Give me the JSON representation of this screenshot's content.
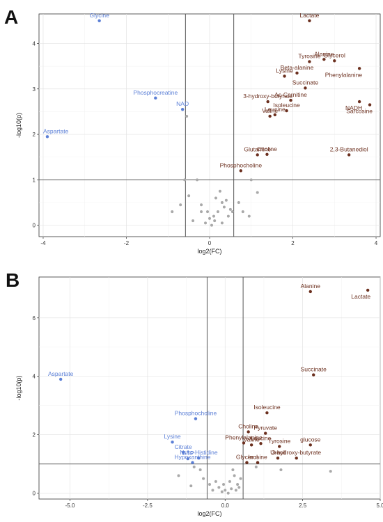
{
  "colors": {
    "up": "#6b2f1e",
    "down": "#5b7fd6",
    "ns": "#a9a9a9",
    "threshold": "#555555"
  },
  "chart_data": [
    {
      "type": "scatter",
      "panel": "A",
      "xlabel": "log2(FC)",
      "ylabel": "-log10(p)",
      "xlim": [
        -4.1,
        4.1
      ],
      "ylim": [
        -0.25,
        4.65
      ],
      "xticks": [
        -4,
        -2,
        0,
        2,
        4
      ],
      "yticks": [
        0,
        1,
        2,
        3,
        4
      ],
      "thresholds": {
        "x": [
          -0.58,
          0.58
        ],
        "y": 1.0
      },
      "grid": true,
      "points": [
        {
          "label": "Lactate",
          "x": 2.4,
          "y": 4.5,
          "g": "up"
        },
        {
          "label": "Alanine",
          "x": 2.75,
          "y": 3.65,
          "g": "up"
        },
        {
          "label": "Tyrosine",
          "x": 2.4,
          "y": 3.6,
          "g": "up"
        },
        {
          "label": "Glycerol",
          "x": 3.0,
          "y": 3.62,
          "g": "up"
        },
        {
          "label": "Phenylalanine",
          "x": 3.6,
          "y": 3.45,
          "g": "up"
        },
        {
          "label": "Beta-alanine",
          "x": 2.1,
          "y": 3.35,
          "g": "up"
        },
        {
          "label": "Lysine",
          "x": 1.8,
          "y": 3.28,
          "g": "up"
        },
        {
          "label": "Succinate",
          "x": 2.3,
          "y": 3.02,
          "g": "up"
        },
        {
          "label": "3-hydroxy-butyrate",
          "x": 1.4,
          "y": 2.72,
          "g": "up"
        },
        {
          "label": "Ac-Carnitine",
          "x": 1.95,
          "y": 2.75,
          "g": "up"
        },
        {
          "label": "NADH",
          "x": 3.6,
          "y": 2.72,
          "g": "up"
        },
        {
          "label": "Valine",
          "x": 1.45,
          "y": 2.4,
          "g": "up"
        },
        {
          "label": "Isoleucine",
          "x": 1.85,
          "y": 2.52,
          "g": "up"
        },
        {
          "label": "Sarcosine",
          "x": 3.85,
          "y": 2.65,
          "g": "up"
        },
        {
          "label": "Leucine",
          "x": 1.57,
          "y": 2.43,
          "g": "up"
        },
        {
          "label": "2,3-Butanediol",
          "x": 3.35,
          "y": 1.55,
          "g": "up"
        },
        {
          "label": "Glutamine",
          "x": 1.15,
          "y": 1.55,
          "g": "up"
        },
        {
          "label": "Choline",
          "x": 1.38,
          "y": 1.56,
          "g": "up"
        },
        {
          "label": "Phosphocholine",
          "x": 0.75,
          "y": 1.2,
          "g": "up"
        },
        {
          "label": "Glycine",
          "x": -2.65,
          "y": 4.5,
          "g": "down"
        },
        {
          "label": "Phosphocreatine",
          "x": -1.3,
          "y": 2.8,
          "g": "down"
        },
        {
          "label": "NAD",
          "x": -0.65,
          "y": 2.55,
          "g": "down"
        },
        {
          "label": "Aspartate",
          "x": -3.9,
          "y": 1.95,
          "g": "down"
        }
      ],
      "ns_points": [
        [
          -0.55,
          2.4
        ],
        [
          -0.6,
          1.0
        ],
        [
          -0.3,
          1.0
        ],
        [
          -0.2,
          0.3
        ],
        [
          0.0,
          0.15
        ],
        [
          0.1,
          0.2
        ],
        [
          0.2,
          0.3
        ],
        [
          0.25,
          0.75
        ],
        [
          0.3,
          0.5
        ],
        [
          0.35,
          0.4
        ],
        [
          0.4,
          0.55
        ],
        [
          0.5,
          0.35
        ],
        [
          0.55,
          0.3
        ],
        [
          0.45,
          0.2
        ],
        [
          -0.1,
          0.05
        ],
        [
          0.05,
          0.0
        ],
        [
          0.15,
          0.6
        ],
        [
          0.3,
          0.05
        ],
        [
          -0.4,
          0.1
        ],
        [
          -0.5,
          0.65
        ],
        [
          -0.7,
          0.45
        ],
        [
          -0.9,
          0.3
        ],
        [
          -0.2,
          0.45
        ],
        [
          0.7,
          0.5
        ],
        [
          0.8,
          0.3
        ],
        [
          1.0,
          1.0
        ],
        [
          1.15,
          0.72
        ],
        [
          0.95,
          0.2
        ],
        [
          -0.05,
          0.3
        ],
        [
          0.12,
          0.1
        ]
      ]
    },
    {
      "type": "scatter",
      "panel": "B",
      "xlabel": "log2(FC)",
      "ylabel": "-log10(p)",
      "xlim": [
        -6.0,
        5.0
      ],
      "ylim": [
        -0.2,
        7.4
      ],
      "xticks": [
        -5.0,
        -2.5,
        0.0,
        2.5,
        5.0
      ],
      "yticks": [
        0,
        2,
        4,
        6
      ],
      "thresholds": {
        "x": [
          -0.58,
          0.58
        ],
        "y": 1.0
      },
      "grid": true,
      "points": [
        {
          "label": "Alanine",
          "x": 2.75,
          "y": 6.9,
          "g": "up"
        },
        {
          "label": "Lactate",
          "x": 4.6,
          "y": 6.95,
          "g": "up"
        },
        {
          "label": "Succinate",
          "x": 2.85,
          "y": 4.05,
          "g": "up"
        },
        {
          "label": "Isoleucine",
          "x": 1.35,
          "y": 2.75,
          "g": "up"
        },
        {
          "label": "Choline",
          "x": 0.75,
          "y": 2.1,
          "g": "up"
        },
        {
          "label": "Pyruvate",
          "x": 1.3,
          "y": 2.05,
          "g": "up"
        },
        {
          "label": "Phenylalanine",
          "x": 0.6,
          "y": 1.72,
          "g": "up"
        },
        {
          "label": "Leucine",
          "x": 1.15,
          "y": 1.7,
          "g": "up"
        },
        {
          "label": "glucose",
          "x": 2.75,
          "y": 1.65,
          "g": "up"
        },
        {
          "label": "Valine",
          "x": 0.85,
          "y": 1.65,
          "g": "up"
        },
        {
          "label": "Tyrosine",
          "x": 1.75,
          "y": 1.6,
          "g": "up"
        },
        {
          "label": "Uracil",
          "x": 1.7,
          "y": 1.2,
          "g": "up"
        },
        {
          "label": "3-hydroxy-butyrate",
          "x": 2.3,
          "y": 1.2,
          "g": "up"
        },
        {
          "label": "Glycerol",
          "x": 0.7,
          "y": 1.05,
          "g": "up"
        },
        {
          "label": "Inosine",
          "x": 1.05,
          "y": 1.05,
          "g": "up"
        },
        {
          "label": "Aspartate",
          "x": -5.3,
          "y": 3.9,
          "g": "down"
        },
        {
          "label": "Phosphocholine",
          "x": -0.95,
          "y": 2.55,
          "g": "down"
        },
        {
          "label": "Lysine",
          "x": -1.7,
          "y": 1.75,
          "g": "down"
        },
        {
          "label": "Citrate",
          "x": -1.35,
          "y": 1.4,
          "g": "down"
        },
        {
          "label": "N-Ac-Histidine",
          "x": -0.85,
          "y": 1.2,
          "g": "down"
        },
        {
          "label": "GTP",
          "x": -1.2,
          "y": 1.18,
          "g": "down"
        },
        {
          "label": "Hypoxanthine",
          "x": -1.05,
          "y": 1.05,
          "g": "down"
        }
      ],
      "ns_points": [
        [
          -1.5,
          0.6
        ],
        [
          -1.0,
          0.9
        ],
        [
          -0.7,
          0.5
        ],
        [
          -0.5,
          0.3
        ],
        [
          -0.3,
          0.4
        ],
        [
          -0.1,
          0.05
        ],
        [
          0.0,
          0.1
        ],
        [
          0.1,
          0.0
        ],
        [
          0.2,
          0.15
        ],
        [
          0.3,
          0.6
        ],
        [
          0.4,
          0.3
        ],
        [
          0.5,
          0.5
        ],
        [
          -0.2,
          0.2
        ],
        [
          -1.1,
          0.25
        ],
        [
          -0.8,
          0.8
        ],
        [
          0.15,
          0.4
        ],
        [
          0.35,
          0.1
        ],
        [
          -0.05,
          0.3
        ],
        [
          0.25,
          0.8
        ],
        [
          1.0,
          0.9
        ],
        [
          1.8,
          0.8
        ],
        [
          3.4,
          0.75
        ],
        [
          -0.4,
          0.1
        ],
        [
          0.45,
          0.2
        ]
      ]
    }
  ]
}
